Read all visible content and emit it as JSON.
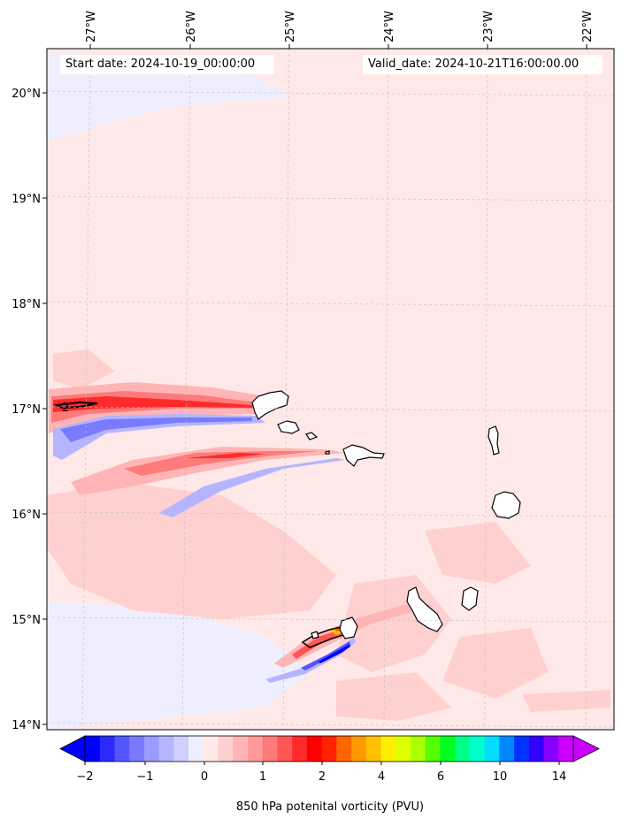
{
  "map": {
    "start_label": "Start date: 2024-10-19_00:00:00",
    "valid_label": "Valid_date: 2024-10-21T16:00:00.00",
    "lon_labels": [
      "27°W",
      "26°W",
      "25°W",
      "24°W",
      "23°W",
      "22°W"
    ],
    "lat_labels": [
      "20°N",
      "19°N",
      "18°N",
      "17°N",
      "16°N",
      "15°N",
      "14°N"
    ],
    "contour_label": "2",
    "extent": {
      "lon": [
        -27.4,
        -21.7
      ],
      "lat": [
        13.95,
        20.4
      ]
    },
    "background_color": "#ffe8e8",
    "gridlines": true
  },
  "colorbar": {
    "label": "850 hPa potenital vorticity (PVU)",
    "ticks": [
      "−2",
      "−1",
      "0",
      "1",
      "2",
      "4",
      "6",
      "10",
      "14"
    ],
    "colors": [
      "#0000ff",
      "#2a2aff",
      "#5555ff",
      "#7a7aff",
      "#9a9aff",
      "#b5b5ff",
      "#d0d0ff",
      "#eeeeff",
      "#ffe8e8",
      "#ffd0d0",
      "#ffb5b5",
      "#ff9a9a",
      "#ff7a7a",
      "#ff5555",
      "#ff2a2a",
      "#ff0000",
      "#ff2200",
      "#ff6600",
      "#ff9900",
      "#ffc000",
      "#ffee00",
      "#ddff00",
      "#aaff00",
      "#55ff00",
      "#00ff22",
      "#00ff88",
      "#00ffcc",
      "#00ddff",
      "#0088ff",
      "#0033ff",
      "#3300ff",
      "#8800ff",
      "#cc00ff"
    ],
    "extend": "both"
  }
}
